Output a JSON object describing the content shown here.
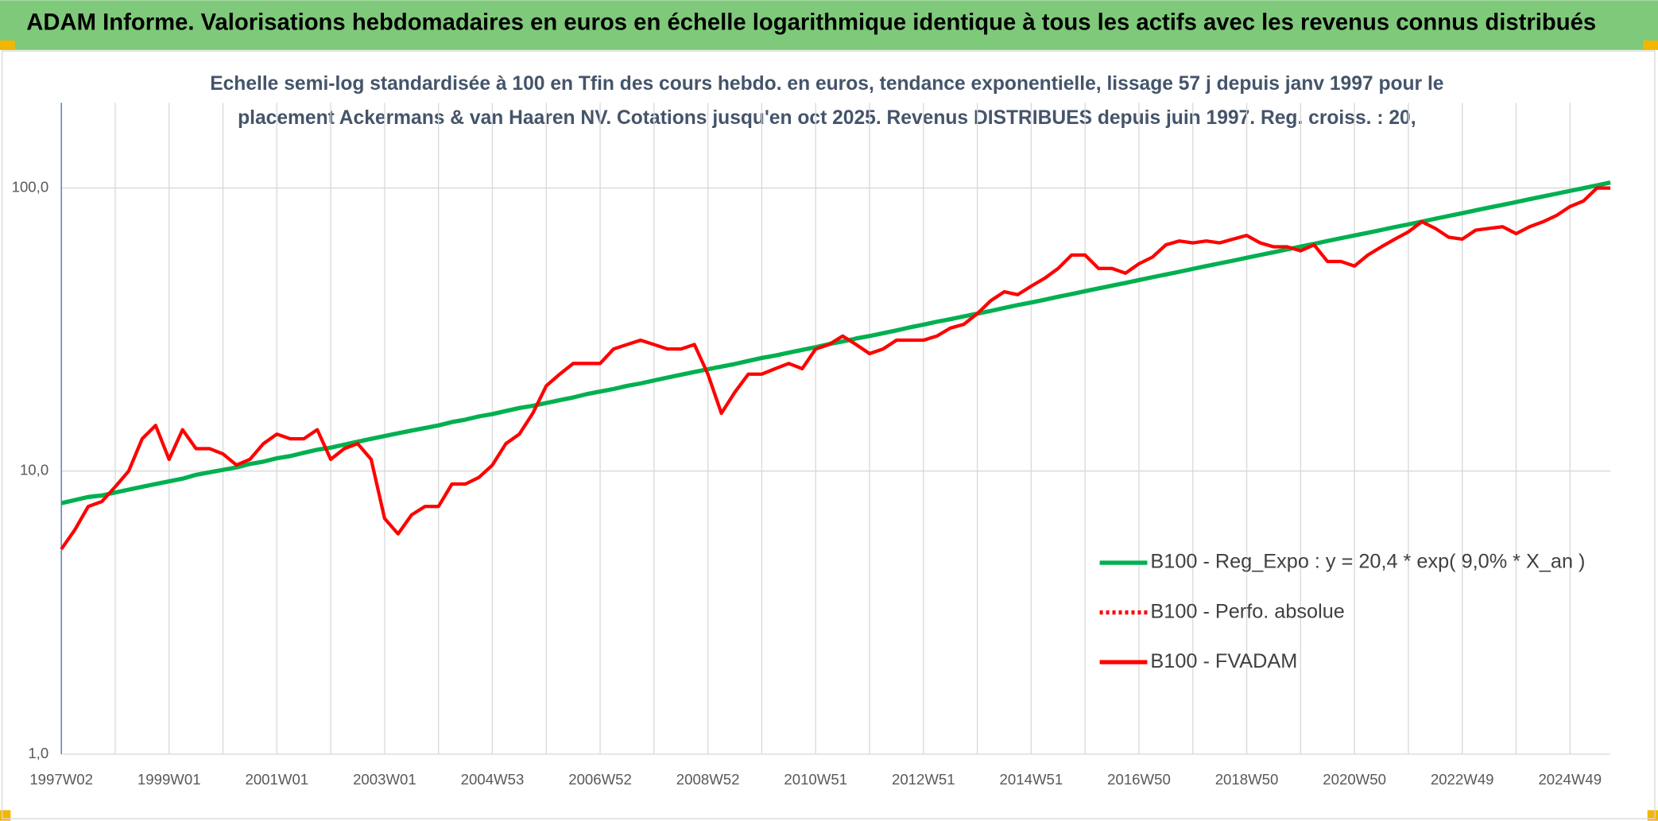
{
  "chart_data": {
    "type": "line",
    "title": "ADAM Informe. Valorisations hebdomadaires en euros en échelle logarithmique identique à tous les actifs avec les revenus connus distribués",
    "subtitle": [
      "Echelle semi-log standardisée à 100 en Tfin des cours hebdo. en euros, tendance exponentielle, lissage 57 j depuis janv 1997 pour le",
      "placement Ackermans & van Haaren NV. Cotations jusqu'en oct 2025. Revenus DISTRIBUES depuis juin 1997. Reg. croiss. : 20,"
    ],
    "log_scale": true,
    "ylim": [
      1,
      200
    ],
    "yticks": [
      {
        "value": 1,
        "label": "1,0"
      },
      {
        "value": 10,
        "label": "10,0"
      },
      {
        "value": 100,
        "label": "100,0"
      }
    ],
    "grid": true,
    "legend": "right",
    "categories": [
      "1997W02",
      null,
      null,
      null,
      null,
      null,
      null,
      null,
      "1999W01",
      null,
      null,
      null,
      null,
      null,
      null,
      null,
      "2001W01",
      null,
      null,
      null,
      null,
      null,
      null,
      null,
      "2003W01",
      null,
      null,
      null,
      null,
      null,
      null,
      null,
      "2004W53",
      null,
      null,
      null,
      null,
      null,
      null,
      null,
      "2006W52",
      null,
      null,
      null,
      null,
      null,
      null,
      null,
      "2008W52",
      null,
      null,
      null,
      null,
      null,
      null,
      null,
      "2010W51",
      null,
      null,
      null,
      null,
      null,
      null,
      null,
      "2012W51",
      null,
      null,
      null,
      null,
      null,
      null,
      null,
      "2014W51",
      null,
      null,
      null,
      null,
      null,
      null,
      null,
      "2016W50",
      null,
      null,
      null,
      null,
      null,
      null,
      null,
      "2018W50",
      null,
      null,
      null,
      null,
      null,
      null,
      null,
      "2020W50",
      null,
      null,
      null,
      null,
      null,
      null,
      null,
      "2022W49",
      null,
      null,
      null,
      null,
      null,
      null,
      null,
      "2024W49",
      null,
      null,
      null
    ],
    "series": [
      {
        "name": "B100 - Reg_Expo : y = 20,4 * exp( 9,0% *  X_an )",
        "color": "#00b050",
        "style": "solid",
        "values": [
          7.7,
          7.9,
          8.1,
          8.2,
          8.4,
          8.6,
          8.8,
          9.0,
          9.2,
          9.4,
          9.7,
          9.9,
          10.1,
          10.3,
          10.6,
          10.8,
          11.1,
          11.3,
          11.6,
          11.9,
          12.1,
          12.4,
          12.7,
          13.0,
          13.3,
          13.6,
          13.9,
          14.2,
          14.5,
          14.9,
          15.2,
          15.6,
          15.9,
          16.3,
          16.7,
          17.0,
          17.4,
          17.8,
          18.2,
          18.7,
          19.1,
          19.5,
          20.0,
          20.4,
          20.9,
          21.4,
          21.9,
          22.4,
          22.9,
          23.4,
          23.9,
          24.5,
          25.1,
          25.6,
          26.2,
          26.8,
          27.4,
          28.1,
          28.7,
          29.4,
          30.0,
          30.7,
          31.4,
          32.2,
          32.9,
          33.7,
          34.4,
          35.2,
          36.0,
          36.8,
          37.7,
          38.6,
          39.4,
          40.3,
          41.3,
          42.2,
          43.2,
          44.2,
          45.2,
          46.2,
          47.3,
          48.4,
          49.5,
          50.6,
          51.8,
          53.0,
          54.2,
          55.4,
          56.7,
          58.0,
          59.3,
          60.7,
          62.1,
          63.5,
          65.0,
          66.5,
          68.0,
          69.5,
          71.1,
          72.8,
          74.4,
          76.1,
          77.9,
          79.7,
          81.5,
          83.4,
          85.3,
          87.2,
          89.2,
          91.3,
          93.4,
          95.5,
          97.7,
          99.9,
          102.2,
          104.6
        ]
      },
      {
        "name": "B100 - Perfo. absolue",
        "color": "#ff0000",
        "style": "dotted",
        "values": [
          null,
          null,
          null,
          null,
          null,
          null,
          null,
          null,
          null,
          null,
          null,
          null,
          null,
          null,
          null,
          null,
          null,
          null,
          null,
          null,
          null,
          null,
          null,
          null,
          null,
          null,
          null,
          null,
          null,
          null,
          null,
          null,
          null,
          null,
          null,
          null,
          null,
          null,
          null,
          null,
          null,
          null,
          null,
          null,
          null,
          null,
          null,
          null,
          null,
          null,
          null,
          null,
          null,
          null,
          null,
          null,
          null,
          null,
          null,
          null,
          null,
          null,
          null,
          null,
          null,
          null,
          null,
          null,
          null,
          null,
          null,
          null,
          null,
          null,
          null,
          null,
          null,
          null,
          null,
          null,
          null,
          null,
          null,
          null,
          null,
          null,
          null,
          null,
          null,
          null,
          null,
          null,
          null,
          null,
          null,
          null,
          null,
          null,
          null,
          null,
          null,
          null,
          null,
          null,
          null,
          null,
          null,
          null,
          null,
          null,
          null,
          null,
          null,
          null,
          null,
          null
        ]
      },
      {
        "name": "B100 - FVADAM",
        "color": "#ff0000",
        "style": "solid",
        "values": [
          5.3,
          6.2,
          7.5,
          7.8,
          8.8,
          10,
          13,
          14.5,
          11,
          14,
          12,
          12,
          11.5,
          10.5,
          11,
          12.5,
          13.5,
          13,
          13,
          14,
          11,
          12,
          12.5,
          11,
          6.8,
          6,
          7,
          7.5,
          7.5,
          9,
          9,
          9.5,
          10.5,
          12.5,
          13.5,
          16,
          20,
          22,
          24,
          24,
          24,
          27,
          28,
          29,
          28,
          27,
          27,
          28,
          22,
          16,
          19,
          22,
          22,
          23,
          24,
          23,
          27,
          28,
          30,
          28,
          26,
          27,
          29,
          29,
          29,
          30,
          32,
          33,
          36,
          40,
          43,
          42,
          45,
          48,
          52,
          58,
          58,
          52,
          52,
          50,
          54,
          57,
          63,
          65,
          64,
          65,
          64,
          66,
          68,
          64,
          62,
          62,
          60,
          63,
          55,
          55,
          53,
          58,
          62,
          66,
          70,
          76,
          72,
          67,
          66,
          71,
          72,
          73,
          69,
          73,
          76,
          80,
          86,
          90,
          100,
          100
        ]
      }
    ]
  }
}
